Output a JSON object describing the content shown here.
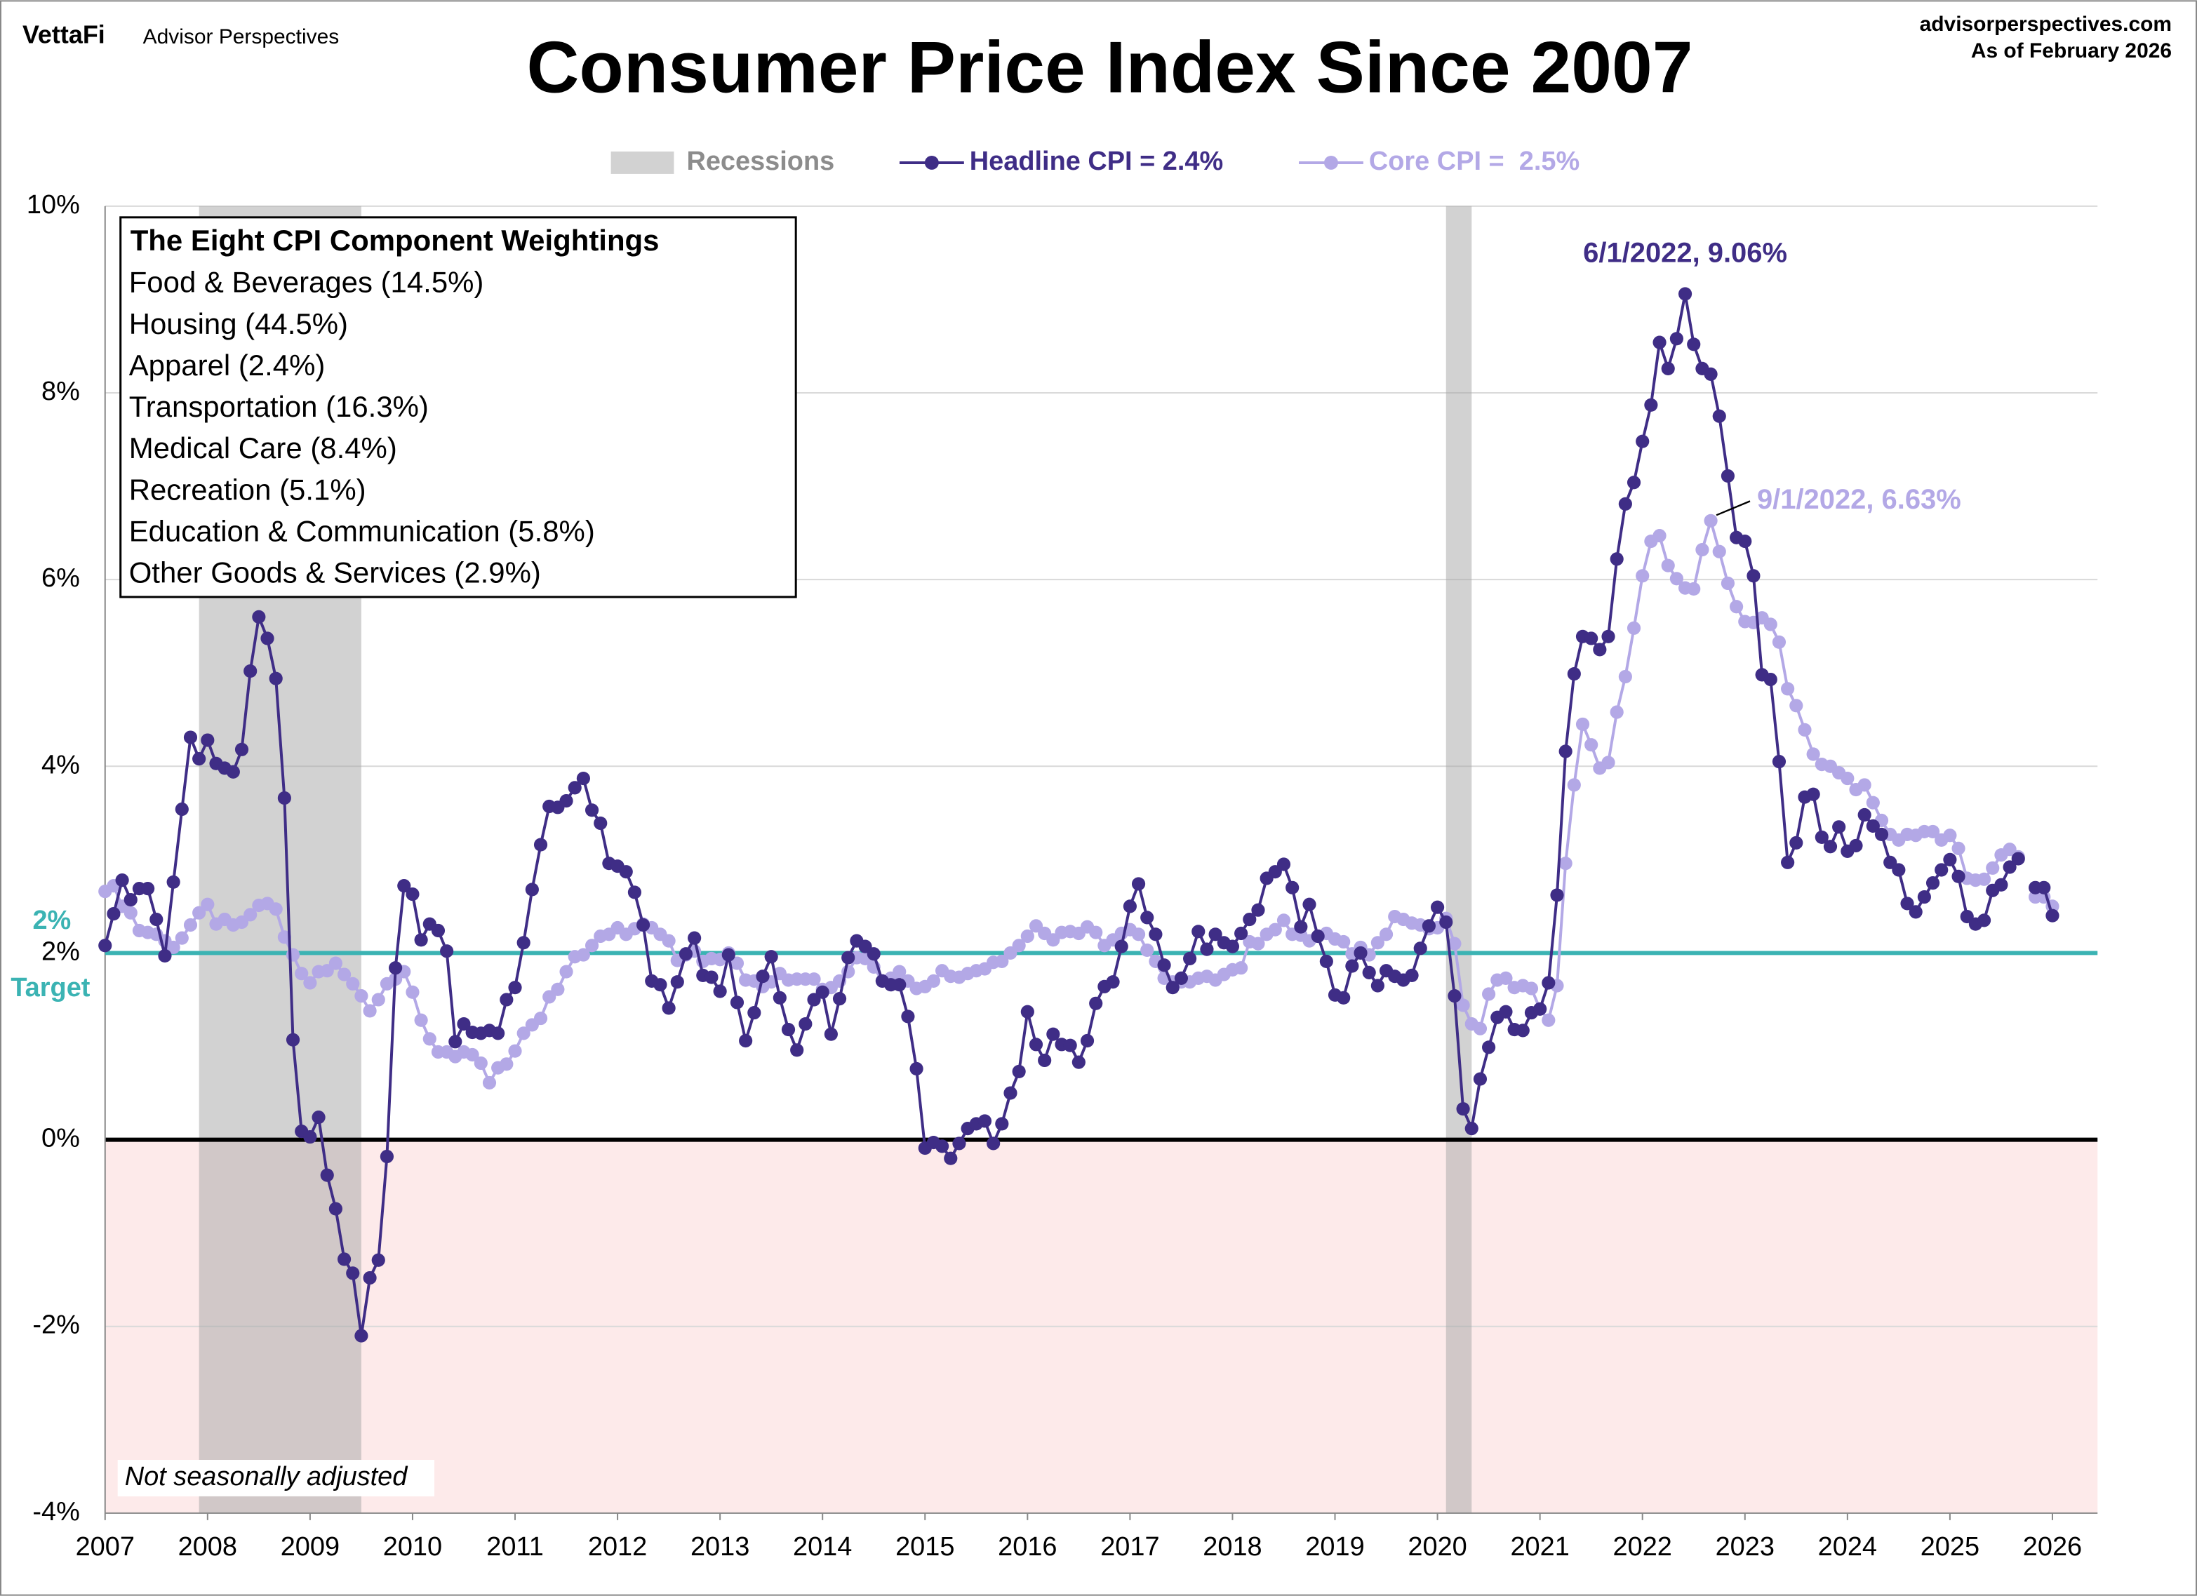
{
  "header": {
    "brand": "VettaFi",
    "publisher": "Advisor Perspectives",
    "site": "advisorperspectives.com",
    "as_of": "As of February 2026"
  },
  "chart_data": {
    "type": "line",
    "title": "Consumer Price Index Since 2007",
    "recession_label": "Recessions",
    "recessions": [
      [
        "2007-12",
        "2009-06"
      ],
      [
        "2020-02",
        "2020-04"
      ]
    ],
    "target": {
      "value": 2,
      "label": "2%",
      "text": "Target",
      "color": "#3bb3b3"
    },
    "box": {
      "title": "The Eight CPI Component Weightings",
      "items": [
        "Food & Beverages (14.5%)",
        "Housing (44.5%)",
        "Apparel (2.4%)",
        "Transportation (16.3%)",
        "Medical Care (8.4%)",
        "Recreation (5.1%)",
        "Education & Communication (5.8%)",
        "Other Goods & Services (2.9%)"
      ]
    },
    "note": "Not seasonally adjusted",
    "annotations": [
      {
        "text": "6/1/2022, 9.06%",
        "x": "2022-06",
        "y": 9.06,
        "series": 0
      },
      {
        "text": "9/1/2022, 6.63%",
        "x": "2022-09",
        "y": 6.63,
        "series": 1
      }
    ],
    "xlim": [
      2007,
      2026.44
    ],
    "xticks": [
      2007,
      2008,
      2009,
      2010,
      2011,
      2012,
      2013,
      2014,
      2015,
      2016,
      2017,
      2018,
      2019,
      2020,
      2021,
      2022,
      2023,
      2024,
      2025,
      2026
    ],
    "ylim": [
      -4,
      10
    ],
    "yticks": [
      {
        "value": -4,
        "label": "-4%"
      },
      {
        "value": -2,
        "label": "-2%"
      },
      {
        "value": 0,
        "label": "0%"
      },
      {
        "value": 2,
        "label": "2%"
      },
      {
        "value": 4,
        "label": "4%"
      },
      {
        "value": 6,
        "label": "6%"
      },
      {
        "value": 8,
        "label": "8%"
      },
      {
        "value": 10,
        "label": "10%"
      }
    ],
    "grid": true,
    "x": [
      "2007-01",
      "2007-02",
      "2007-03",
      "2007-04",
      "2007-05",
      "2007-06",
      "2007-07",
      "2007-08",
      "2007-09",
      "2007-10",
      "2007-11",
      "2007-12",
      "2008-01",
      "2008-02",
      "2008-03",
      "2008-04",
      "2008-05",
      "2008-06",
      "2008-07",
      "2008-08",
      "2008-09",
      "2008-10",
      "2008-11",
      "2008-12",
      "2009-01",
      "2009-02",
      "2009-03",
      "2009-04",
      "2009-05",
      "2009-06",
      "2009-07",
      "2009-08",
      "2009-09",
      "2009-10",
      "2009-11",
      "2009-12",
      "2010-01",
      "2010-02",
      "2010-03",
      "2010-04",
      "2010-05",
      "2010-06",
      "2010-07",
      "2010-08",
      "2010-09",
      "2010-10",
      "2010-11",
      "2010-12",
      "2011-01",
      "2011-02",
      "2011-03",
      "2011-04",
      "2011-05",
      "2011-06",
      "2011-07",
      "2011-08",
      "2011-09",
      "2011-10",
      "2011-11",
      "2011-12",
      "2012-01",
      "2012-02",
      "2012-03",
      "2012-04",
      "2012-05",
      "2012-06",
      "2012-07",
      "2012-08",
      "2012-09",
      "2012-10",
      "2012-11",
      "2012-12",
      "2013-01",
      "2013-02",
      "2013-03",
      "2013-04",
      "2013-05",
      "2013-06",
      "2013-07",
      "2013-08",
      "2013-09",
      "2013-10",
      "2013-11",
      "2013-12",
      "2014-01",
      "2014-02",
      "2014-03",
      "2014-04",
      "2014-05",
      "2014-06",
      "2014-07",
      "2014-08",
      "2014-09",
      "2014-10",
      "2014-11",
      "2014-12",
      "2015-01",
      "2015-02",
      "2015-03",
      "2015-04",
      "2015-05",
      "2015-06",
      "2015-07",
      "2015-08",
      "2015-09",
      "2015-10",
      "2015-11",
      "2015-12",
      "2016-01",
      "2016-02",
      "2016-03",
      "2016-04",
      "2016-05",
      "2016-06",
      "2016-07",
      "2016-08",
      "2016-09",
      "2016-10",
      "2016-11",
      "2016-12",
      "2017-01",
      "2017-02",
      "2017-03",
      "2017-04",
      "2017-05",
      "2017-06",
      "2017-07",
      "2017-08",
      "2017-09",
      "2017-10",
      "2017-11",
      "2017-12",
      "2018-01",
      "2018-02",
      "2018-03",
      "2018-04",
      "2018-05",
      "2018-06",
      "2018-07",
      "2018-08",
      "2018-09",
      "2018-10",
      "2018-11",
      "2018-12",
      "2019-01",
      "2019-02",
      "2019-03",
      "2019-04",
      "2019-05",
      "2019-06",
      "2019-07",
      "2019-08",
      "2019-09",
      "2019-10",
      "2019-11",
      "2019-12",
      "2020-01",
      "2020-02",
      "2020-03",
      "2020-04",
      "2020-05",
      "2020-06",
      "2020-07",
      "2020-08",
      "2020-09",
      "2020-10",
      "2020-11",
      "2020-12",
      "2021-01",
      "2021-02",
      "2021-03",
      "2021-04",
      "2021-05",
      "2021-06",
      "2021-07",
      "2021-08",
      "2021-09",
      "2021-10",
      "2021-11",
      "2021-12",
      "2022-01",
      "2022-02",
      "2022-03",
      "2022-04",
      "2022-05",
      "2022-06",
      "2022-07",
      "2022-08",
      "2022-09",
      "2022-10",
      "2022-11",
      "2022-12",
      "2023-01",
      "2023-02",
      "2023-03",
      "2023-04",
      "2023-05",
      "2023-06",
      "2023-07",
      "2023-08",
      "2023-09",
      "2023-10",
      "2023-11",
      "2023-12",
      "2024-01",
      "2024-02",
      "2024-03",
      "2024-04",
      "2024-05",
      "2024-06",
      "2024-07",
      "2024-08",
      "2024-09",
      "2024-10",
      "2024-11",
      "2024-12",
      "2025-01",
      "2025-02",
      "2025-03",
      "2025-04",
      "2025-05",
      "2025-06",
      "2025-07",
      "2025-08",
      "2025-09",
      "2025-10",
      "2025-11",
      "2025-12",
      "2026-01"
    ],
    "series": [
      {
        "name": "Headline CPI = 2.4%",
        "color": "#3f2d86",
        "values": [
          2.08,
          2.42,
          2.78,
          2.57,
          2.69,
          2.69,
          2.36,
          1.97,
          2.76,
          3.54,
          4.31,
          4.08,
          4.28,
          4.03,
          3.98,
          3.94,
          4.18,
          5.02,
          5.6,
          5.37,
          4.94,
          3.66,
          1.07,
          0.09,
          0.03,
          0.24,
          -0.38,
          -0.74,
          -1.28,
          -1.43,
          -2.1,
          -1.48,
          -1.29,
          -0.18,
          1.84,
          2.72,
          2.63,
          2.14,
          2.31,
          2.24,
          2.02,
          1.05,
          1.24,
          1.15,
          1.14,
          1.17,
          1.14,
          1.5,
          1.63,
          2.11,
          2.68,
          3.16,
          3.57,
          3.56,
          3.63,
          3.77,
          3.87,
          3.53,
          3.39,
          2.96,
          2.93,
          2.87,
          2.65,
          2.3,
          1.7,
          1.66,
          1.41,
          1.69,
          1.99,
          2.16,
          1.76,
          1.74,
          1.59,
          1.98,
          1.47,
          1.06,
          1.36,
          1.75,
          1.96,
          1.52,
          1.18,
          0.96,
          1.24,
          1.5,
          1.58,
          1.13,
          1.51,
          1.95,
          2.13,
          2.07,
          1.99,
          1.7,
          1.66,
          1.66,
          1.32,
          0.76,
          -0.09,
          -0.03,
          -0.07,
          -0.2,
          -0.04,
          0.12,
          0.17,
          0.2,
          -0.04,
          0.17,
          0.5,
          0.73,
          1.37,
          1.02,
          0.85,
          1.13,
          1.02,
          1.01,
          0.83,
          1.06,
          1.46,
          1.64,
          1.69,
          2.07,
          2.5,
          2.74,
          2.38,
          2.2,
          1.87,
          1.63,
          1.73,
          1.94,
          2.23,
          2.04,
          2.2,
          2.11,
          2.07,
          2.21,
          2.36,
          2.46,
          2.8,
          2.87,
          2.95,
          2.7,
          2.28,
          2.52,
          2.18,
          1.91,
          1.55,
          1.52,
          1.86,
          2.0,
          1.79,
          1.65,
          1.81,
          1.75,
          1.71,
          1.76,
          2.05,
          2.29,
          2.49,
          2.33,
          1.54,
          0.33,
          0.12,
          0.65,
          0.99,
          1.31,
          1.37,
          1.18,
          1.17,
          1.36,
          1.4,
          1.68,
          2.62,
          4.16,
          4.99,
          5.39,
          5.37,
          5.25,
          5.39,
          6.22,
          6.81,
          7.04,
          7.48,
          7.87,
          8.54,
          8.26,
          8.58,
          9.06,
          8.52,
          8.26,
          8.2,
          7.75,
          7.11,
          6.45,
          6.41,
          6.04,
          4.98,
          4.93,
          4.05,
          2.97,
          3.18,
          3.67,
          3.7,
          3.24,
          3.14,
          3.35,
          3.09,
          3.15,
          3.48,
          3.36,
          3.27,
          2.97,
          2.89,
          2.53,
          2.44,
          2.6,
          2.75,
          2.89,
          3.0,
          2.82,
          2.39,
          2.31,
          2.35,
          2.67,
          2.73,
          2.92,
          3.01,
          null,
          2.7,
          2.7,
          2.4
        ]
      },
      {
        "name": "Core CPI =  2.5%",
        "color": "#b3a8e6",
        "values": [
          2.66,
          2.72,
          2.5,
          2.43,
          2.24,
          2.22,
          2.2,
          2.13,
          2.06,
          2.16,
          2.3,
          2.43,
          2.52,
          2.31,
          2.36,
          2.3,
          2.33,
          2.41,
          2.51,
          2.53,
          2.47,
          2.17,
          1.98,
          1.78,
          1.68,
          1.8,
          1.81,
          1.89,
          1.77,
          1.67,
          1.54,
          1.38,
          1.5,
          1.67,
          1.72,
          1.8,
          1.58,
          1.28,
          1.08,
          0.94,
          0.94,
          0.89,
          0.94,
          0.91,
          0.82,
          0.61,
          0.77,
          0.81,
          0.95,
          1.14,
          1.23,
          1.3,
          1.53,
          1.61,
          1.8,
          1.96,
          1.98,
          2.08,
          2.18,
          2.2,
          2.27,
          2.2,
          2.26,
          2.31,
          2.27,
          2.2,
          2.13,
          1.92,
          1.98,
          2.02,
          1.91,
          1.94,
          1.93,
          2.0,
          1.89,
          1.71,
          1.7,
          1.64,
          1.69,
          1.78,
          1.71,
          1.72,
          1.72,
          1.72,
          1.61,
          1.63,
          1.7,
          1.8,
          1.95,
          1.94,
          1.85,
          1.7,
          1.73,
          1.8,
          1.7,
          1.62,
          1.64,
          1.7,
          1.81,
          1.75,
          1.74,
          1.78,
          1.81,
          1.83,
          1.9,
          1.91,
          2.0,
          2.08,
          2.18,
          2.29,
          2.21,
          2.14,
          2.22,
          2.23,
          2.21,
          2.28,
          2.22,
          2.08,
          2.14,
          2.21,
          2.25,
          2.2,
          2.03,
          1.91,
          1.73,
          1.69,
          1.69,
          1.69,
          1.73,
          1.75,
          1.71,
          1.77,
          1.82,
          1.84,
          2.12,
          2.1,
          2.2,
          2.25,
          2.35,
          2.2,
          2.19,
          2.13,
          2.18,
          2.21,
          2.15,
          2.12,
          1.99,
          2.06,
          1.98,
          2.11,
          2.2,
          2.39,
          2.36,
          2.32,
          2.3,
          2.26,
          2.27,
          2.37,
          2.1,
          1.44,
          1.24,
          1.19,
          1.56,
          1.71,
          1.73,
          1.63,
          1.65,
          1.62,
          1.4,
          1.28,
          1.65,
          2.96,
          3.8,
          4.45,
          4.23,
          3.98,
          4.04,
          4.58,
          4.96,
          5.48,
          6.04,
          6.41,
          6.47,
          6.15,
          6.01,
          5.91,
          5.9,
          6.32,
          6.63,
          6.3,
          5.96,
          5.71,
          5.55,
          5.54,
          5.59,
          5.52,
          5.33,
          4.83,
          4.65,
          4.39,
          4.13,
          4.02,
          4.0,
          3.93,
          3.87,
          3.75,
          3.8,
          3.61,
          3.42,
          3.27,
          3.21,
          3.27,
          3.26,
          3.3,
          3.3,
          3.21,
          3.26,
          3.12,
          2.8,
          2.78,
          2.79,
          2.91,
          3.05,
          3.11,
          3.03,
          null,
          2.6,
          2.6,
          2.5
        ]
      }
    ]
  }
}
